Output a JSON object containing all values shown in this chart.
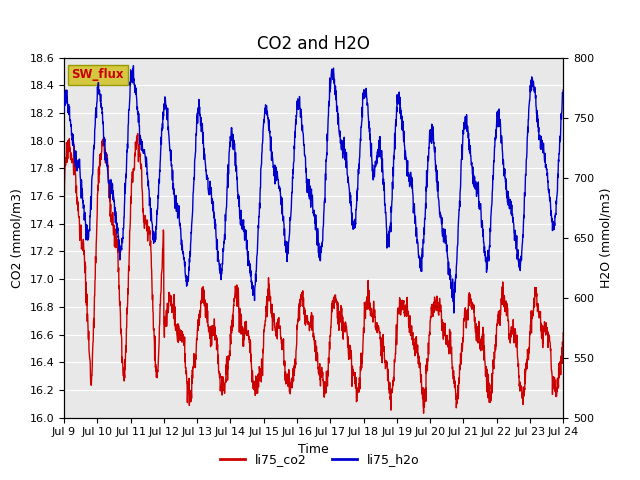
{
  "title": "CO2 and H2O",
  "xlabel": "Time",
  "ylabel_left": "CO2 (mmol/m3)",
  "ylabel_right": "H2O (mmol/m3)",
  "ylim_left": [
    16.0,
    18.6
  ],
  "ylim_right": [
    500,
    800
  ],
  "yticks_left": [
    16.0,
    16.2,
    16.4,
    16.6,
    16.8,
    17.0,
    17.2,
    17.4,
    17.6,
    17.8,
    18.0,
    18.2,
    18.4,
    18.6
  ],
  "yticks_right": [
    500,
    550,
    600,
    650,
    700,
    750,
    800
  ],
  "xtick_labels": [
    "Jul 9",
    "Jul 10",
    "Jul 11",
    "Jul 12",
    "Jul 13",
    "Jul 14",
    "Jul 15",
    "Jul 16",
    "Jul 17",
    "Jul 18",
    "Jul 19",
    "Jul 20",
    "Jul 21",
    "Jul 22",
    "Jul 23",
    "Jul 24"
  ],
  "line_color_co2": "#cc0000",
  "line_color_h2o": "#0000cc",
  "line_width": 1.0,
  "legend_co2": "li75_co2",
  "legend_h2o": "li75_h2o",
  "sw_flux_label": "SW_flux",
  "sw_flux_bg": "#d4c840",
  "sw_flux_text": "#cc0000",
  "plot_bg": "#e8e8e8",
  "fig_bg": "#ffffff",
  "title_fontsize": 12,
  "axis_label_fontsize": 9,
  "tick_fontsize": 8,
  "legend_fontsize": 9
}
